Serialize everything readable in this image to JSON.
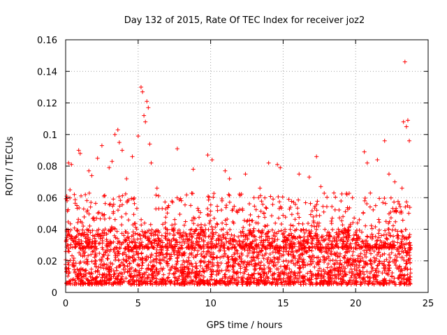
{
  "chart_data": {
    "type": "scatter",
    "title": "Day 132 of 2015, Rate Of TEC Index for receiver joz2",
    "xlabel": "GPS time / hours",
    "ylabel": "ROTI / TECUs",
    "xlim": [
      0,
      25
    ],
    "ylim": [
      0,
      0.16
    ],
    "xticks": [
      0,
      5,
      10,
      15,
      20,
      25
    ],
    "xtick_labels": [
      "0",
      "5",
      "10",
      "15",
      "20",
      "25"
    ],
    "yticks": [
      0,
      0.02,
      0.04,
      0.06,
      0.08,
      0.1,
      0.12,
      0.14,
      0.16
    ],
    "ytick_labels": [
      "0",
      "0.02",
      "0.04",
      "0.06",
      "0.08",
      "0.1",
      "0.12",
      "0.14",
      "0.16"
    ],
    "grid": true,
    "marker": "plus",
    "color": "#ff0000",
    "series": [
      {
        "name": "ROTI",
        "note": "dense cloud of ~thousands of points between 0.005 and 0.03 across 0-24 h; representative outliers listed",
        "x": [
          0.1,
          0.2,
          0.3,
          0.4,
          0.6,
          0.9,
          1.0,
          1.6,
          1.8,
          2.2,
          2.5,
          3.0,
          3.2,
          3.4,
          3.6,
          3.7,
          3.9,
          4.2,
          4.6,
          5.0,
          5.2,
          5.3,
          5.4,
          5.5,
          5.6,
          5.7,
          5.8,
          5.9,
          6.3,
          7.1,
          7.7,
          8.8,
          9.8,
          10.1,
          11.0,
          11.3,
          12.4,
          13.4,
          14.0,
          14.6,
          14.8,
          16.1,
          16.8,
          17.3,
          17.6,
          18.5,
          19.4,
          20.6,
          20.8,
          21.5,
          22.0,
          22.3,
          22.7,
          23.0,
          23.2,
          23.3,
          23.4,
          23.5,
          23.6,
          23.7
        ],
        "y": [
          0.058,
          0.082,
          0.065,
          0.081,
          0.062,
          0.09,
          0.088,
          0.077,
          0.074,
          0.085,
          0.093,
          0.079,
          0.083,
          0.1,
          0.103,
          0.095,
          0.09,
          0.072,
          0.086,
          0.099,
          0.13,
          0.127,
          0.112,
          0.108,
          0.121,
          0.117,
          0.094,
          0.082,
          0.066,
          0.055,
          0.091,
          0.078,
          0.087,
          0.084,
          0.077,
          0.072,
          0.075,
          0.066,
          0.082,
          0.081,
          0.079,
          0.075,
          0.073,
          0.086,
          0.067,
          0.063,
          0.062,
          0.089,
          0.082,
          0.084,
          0.096,
          0.075,
          0.07,
          0.056,
          0.066,
          0.108,
          0.146,
          0.105,
          0.109,
          0.096
        ],
        "background_range": [
          0.005,
          0.03
        ]
      }
    ]
  }
}
